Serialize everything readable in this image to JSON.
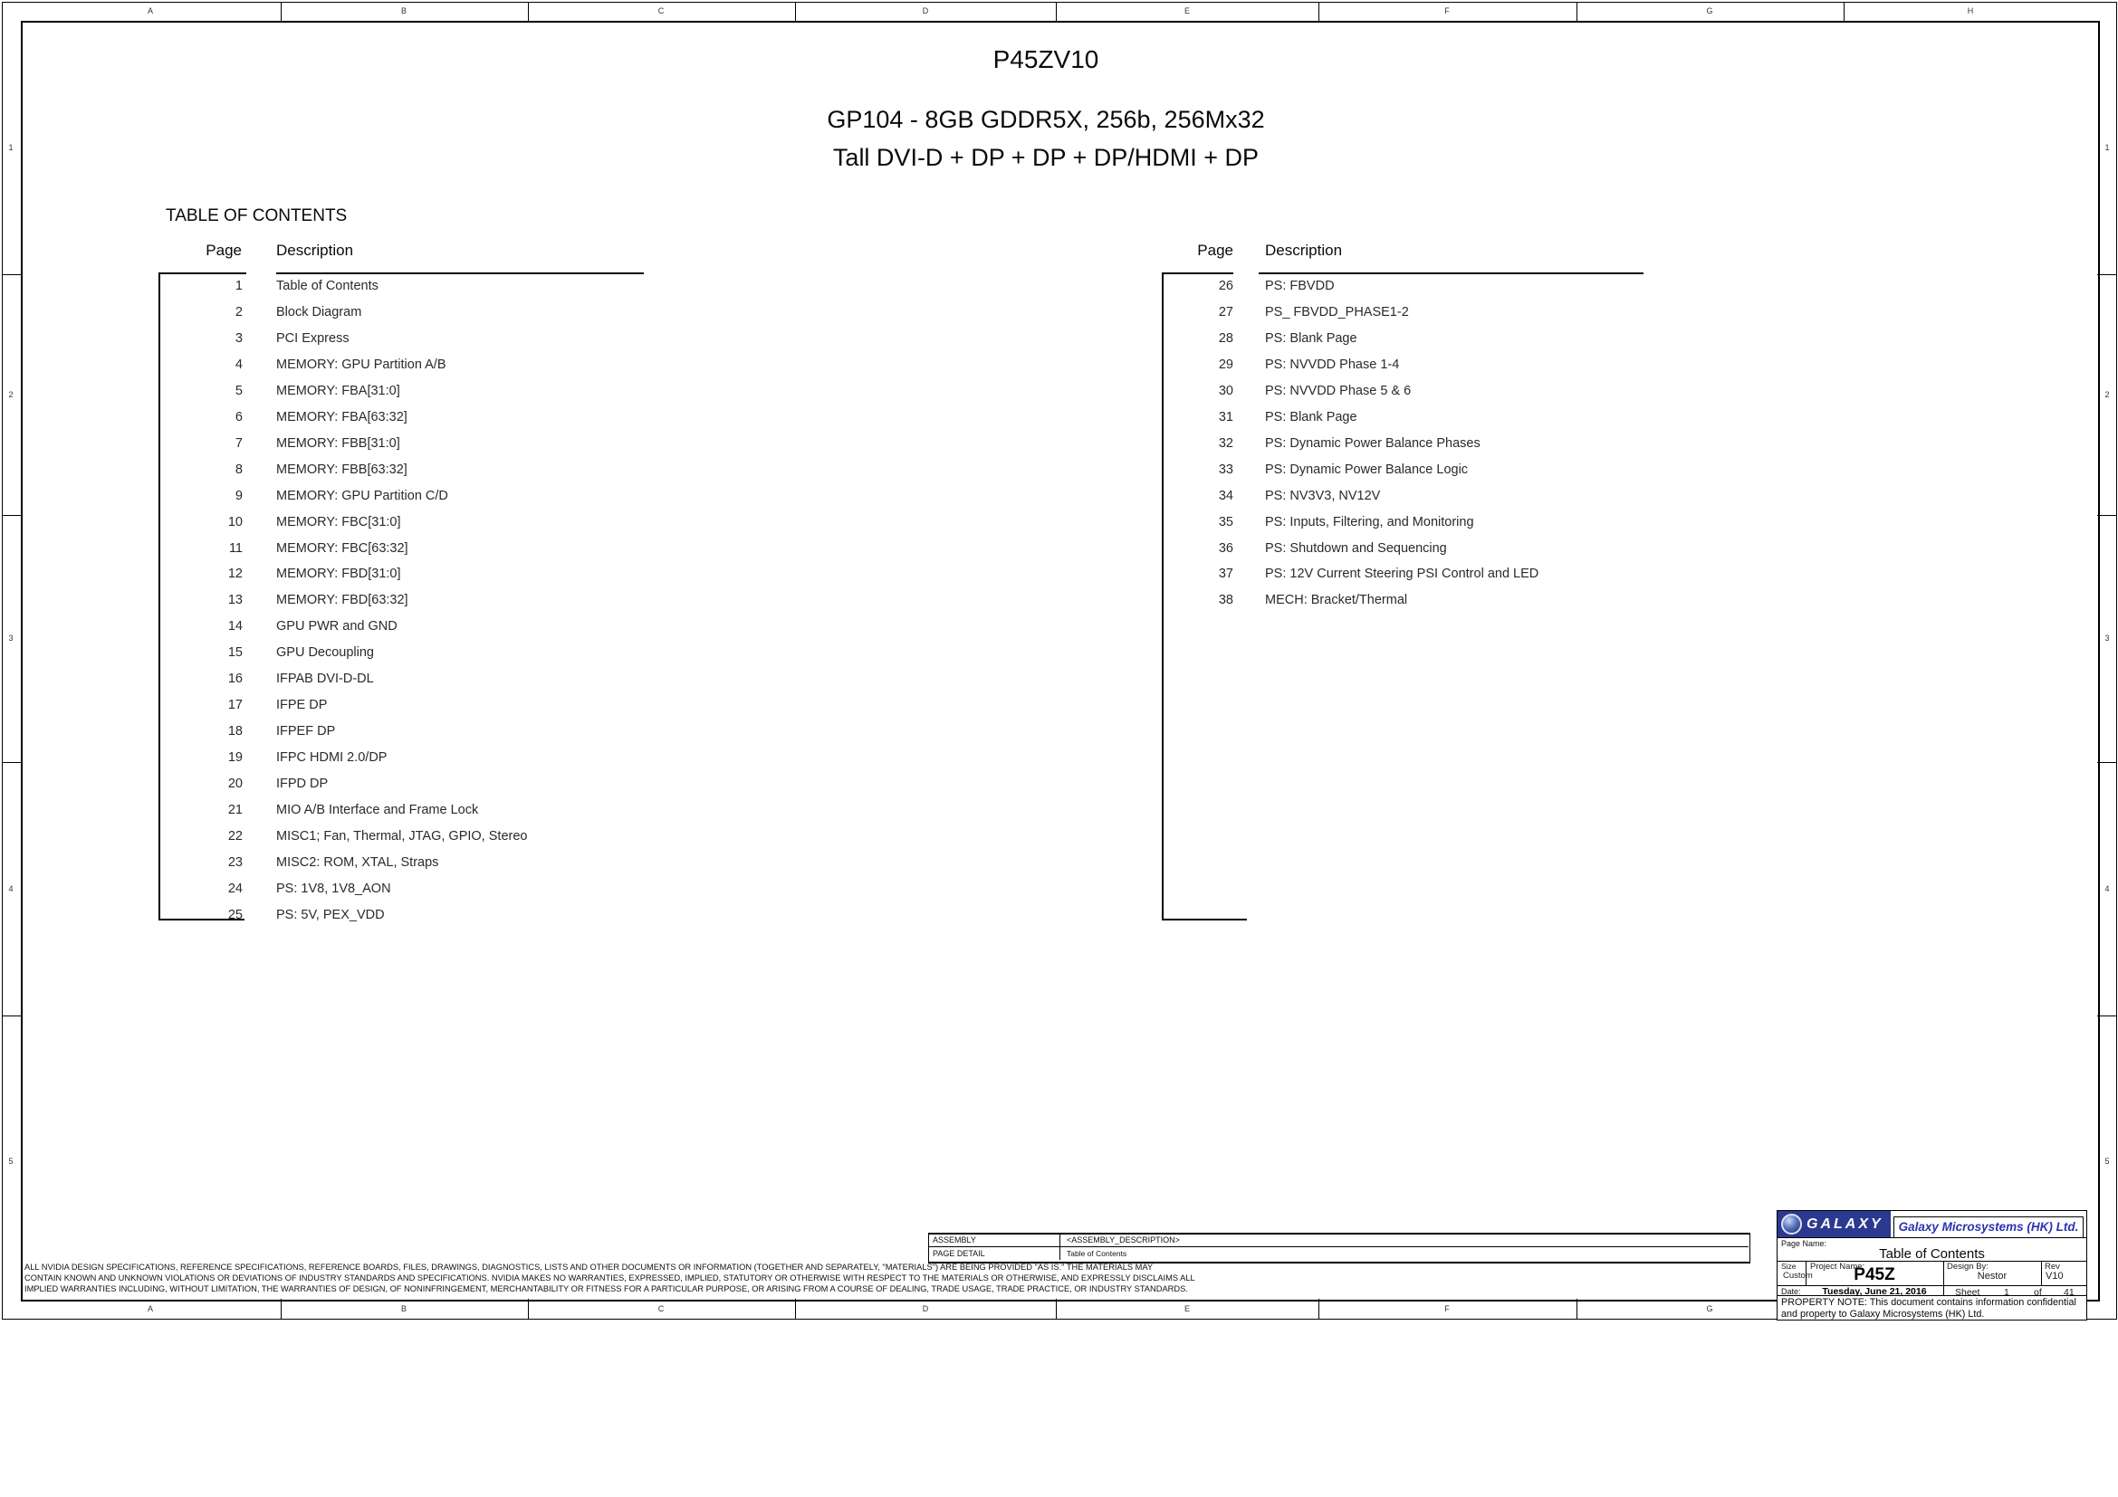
{
  "page": {
    "titles": [
      "P45ZV10",
      "GP104 - 8GB GDDR5X, 256b, 256Mx32",
      "Tall DVI-D + DP + DP + DP/HDMI + DP"
    ],
    "toc_heading": "TABLE OF CONTENTS"
  },
  "toc": {
    "page_header": "Page",
    "description_header": "Description",
    "left_entries": [
      {
        "page": "1",
        "desc": "Table of Contents"
      },
      {
        "page": "2",
        "desc": "Block Diagram"
      },
      {
        "page": "3",
        "desc": "PCI Express"
      },
      {
        "page": "4",
        "desc": "MEMORY: GPU Partition A/B"
      },
      {
        "page": "5",
        "desc": "MEMORY: FBA[31:0]"
      },
      {
        "page": "6",
        "desc": "MEMORY: FBA[63:32]"
      },
      {
        "page": "7",
        "desc": "MEMORY: FBB[31:0]"
      },
      {
        "page": "8",
        "desc": "MEMORY: FBB[63:32]"
      },
      {
        "page": "9",
        "desc": "MEMORY: GPU Partition C/D"
      },
      {
        "page": "10",
        "desc": "MEMORY: FBC[31:0]"
      },
      {
        "page": "11",
        "desc": "MEMORY: FBC[63:32]"
      },
      {
        "page": "12",
        "desc": "MEMORY: FBD[31:0]"
      },
      {
        "page": "13",
        "desc": "MEMORY: FBD[63:32]"
      },
      {
        "page": "14",
        "desc": "GPU PWR and GND"
      },
      {
        "page": "15",
        "desc": "GPU Decoupling"
      },
      {
        "page": "16",
        "desc": "IFPAB DVI-D-DL"
      },
      {
        "page": "17",
        "desc": "IFPE DP"
      },
      {
        "page": "18",
        "desc": "IFPEF DP"
      },
      {
        "page": "19",
        "desc": "IFPC HDMI 2.0/DP"
      },
      {
        "page": "20",
        "desc": "IFPD DP"
      },
      {
        "page": "21",
        "desc": "MIO A/B Interface and Frame Lock"
      },
      {
        "page": "22",
        "desc": "MISC1; Fan, Thermal, JTAG, GPIO, Stereo"
      },
      {
        "page": "23",
        "desc": "MISC2: ROM, XTAL, Straps"
      },
      {
        "page": "24",
        "desc": "PS: 1V8, 1V8_AON"
      },
      {
        "page": "25",
        "desc": "PS: 5V, PEX_VDD"
      }
    ],
    "right_entries": [
      {
        "page": "26",
        "desc": "PS: FBVDD"
      },
      {
        "page": "27",
        "desc": "PS_ FBVDD_PHASE1-2"
      },
      {
        "page": "28",
        "desc": "PS: Blank Page"
      },
      {
        "page": "29",
        "desc": "PS: NVVDD Phase 1-4"
      },
      {
        "page": "30",
        "desc": "PS: NVVDD Phase 5 & 6"
      },
      {
        "page": "31",
        "desc": "PS: Blank Page"
      },
      {
        "page": "32",
        "desc": "PS: Dynamic Power Balance Phases"
      },
      {
        "page": "33",
        "desc": "PS: Dynamic Power Balance Logic"
      },
      {
        "page": "34",
        "desc": "PS: NV3V3, NV12V"
      },
      {
        "page": "35",
        "desc": "PS: Inputs, Filtering, and Monitoring"
      },
      {
        "page": "36",
        "desc": "PS: Shutdown and Sequencing"
      },
      {
        "page": "37",
        "desc": "PS: 12V Current Steering PSI Control and LED"
      },
      {
        "page": "38",
        "desc": "MECH: Bracket/Thermal"
      }
    ]
  },
  "border": {
    "top_letters": [
      "A",
      "B",
      "C",
      "D",
      "E",
      "F",
      "G",
      "H"
    ],
    "bottom_letters": [
      "A",
      "B",
      "C",
      "D",
      "E",
      "F",
      "G"
    ],
    "row_numbers": [
      "1",
      "2",
      "3",
      "4",
      "5"
    ]
  },
  "disclaimer": {
    "lines": [
      "ALL NVIDIA DESIGN SPECIFICATIONS, REFERENCE SPECIFICATIONS, REFERENCE BOARDS, FILES, DRAWINGS, DIAGNOSTICS, LISTS AND OTHER DOCUMENTS OR INFORMATION (TOGETHER AND SEPARATELY, \"MATERIALS\") ARE BEING PROVIDED \"AS IS.\" THE MATERIALS MAY",
      "CONTAIN KNOWN AND UNKNOWN VIOLATIONS OR DEVIATIONS OF INDUSTRY STANDARDS AND SPECIFICATIONS. NVIDIA MAKES NO WARRANTIES, EXPRESSED, IMPLIED, STATUTORY OR OTHERWISE WITH RESPECT TO THE MATERIALS OR OTHERWISE, AND EXPRESSLY DISCLAIMS ALL",
      "IMPLIED WARRANTIES INCLUDING, WITHOUT LIMITATION, THE WARRANTIES OF DESIGN, OF NONINFRINGEMENT, MERCHANTABILITY OR FITNESS FOR A PARTICULAR PURPOSE, OR ARISING FROM A COURSE OF DEALING, TRADE USAGE, TRADE PRACTICE, OR INDUSTRY STANDARDS."
    ]
  },
  "assembly": {
    "assembly_label": "ASSEMBLY",
    "assembly_value": "<ASSEMBLY_DESCRIPTION>",
    "page_detail_label": "PAGE DETAIL",
    "page_detail_value": "Table of Contents"
  },
  "title_block": {
    "logo_text": "GALAXY",
    "company": "Galaxy Microsystems (HK)  Ltd.",
    "page_name_label": "Page Name:",
    "page_name": "Table of Contents",
    "size_label": "Size",
    "size_value": "Custom",
    "project_label": "Project Name:",
    "project_value": "P45Z",
    "design_label": "Design By:",
    "design_value": "Nestor",
    "rev_label": "Rev",
    "rev_value": "V10",
    "date_label": "Date:",
    "date_value": "Tuesday, June 21, 2016",
    "sheet_label": "Sheet",
    "sheet_number": "1",
    "of_label": "of",
    "total_sheets": "41",
    "property_note": "PROPERTY NOTE: This document contains information confidential and property to Galaxy Microsystems (HK) Ltd.",
    "colors": {
      "logo_bg": "#2b3990",
      "company_text": "#2a35b0"
    }
  }
}
